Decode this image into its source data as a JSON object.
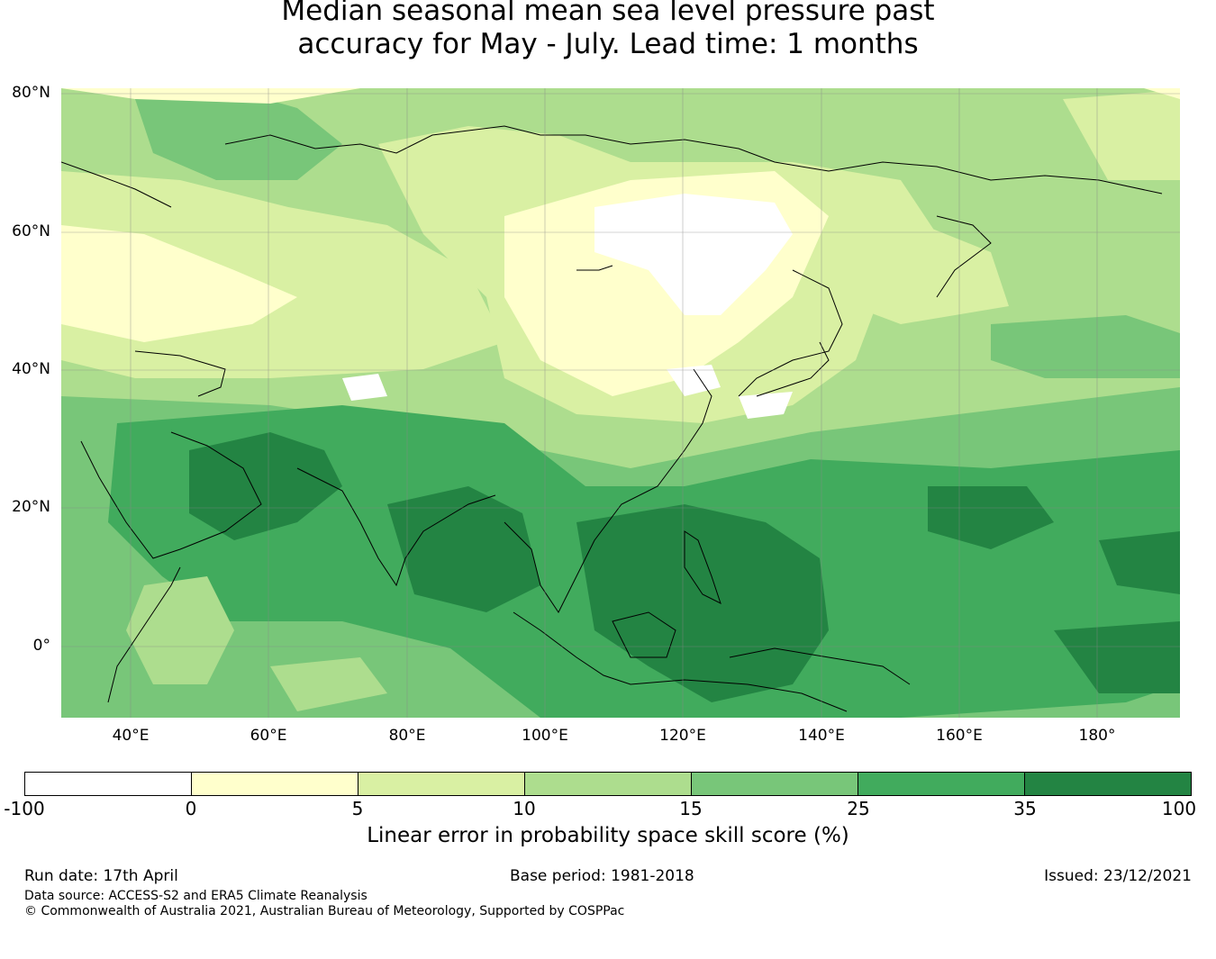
{
  "title": {
    "line1": "Median seasonal mean sea level pressure past",
    "line2": "accuracy for May - July. Lead time: 1 months"
  },
  "map": {
    "lat_labels": [
      "80°N",
      "60°N",
      "40°N",
      "20°N",
      "0°"
    ],
    "lon_labels": [
      "40°E",
      "60°E",
      "80°E",
      "100°E",
      "120°E",
      "140°E",
      "160°E",
      "180°"
    ],
    "gridlines": true
  },
  "colorbar": {
    "title": "Linear error in probability space skill score (%)",
    "ticks": [
      "-100",
      "0",
      "5",
      "10",
      "15",
      "25",
      "35",
      "100"
    ],
    "colors": [
      "#ffffff",
      "#ffffcc",
      "#d9f0a3",
      "#addd8e",
      "#78c679",
      "#41ab5d",
      "#238443"
    ]
  },
  "footer": {
    "run_date": "Run date: 17th April",
    "base_period": "Base period: 1981-2018",
    "issued": "Issued: 23/12/2021",
    "data_source": "Data source: ACCESS-S2 and ERA5 Climate Reanalysis",
    "copyright": "© Commonwealth of Australia 2021, Australian Bureau of Meteorology, Supported by COSPPac"
  }
}
